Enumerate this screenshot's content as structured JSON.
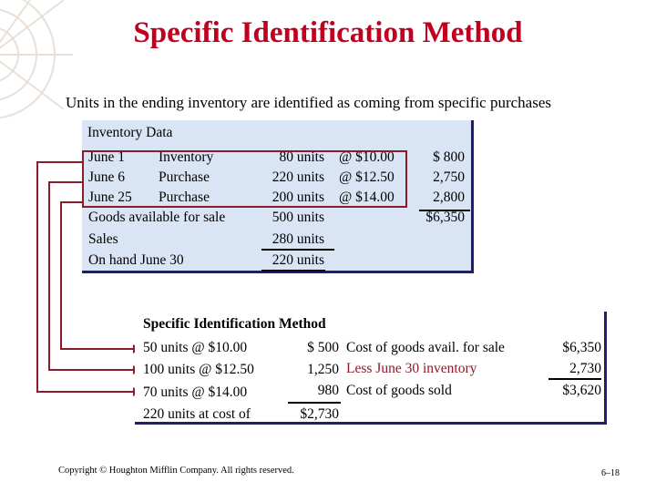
{
  "title": "Specific Identification Method",
  "subtitle": "Units in the ending inventory are identified as coming from specific purchases",
  "inventory": {
    "heading": "Inventory Data",
    "rows": [
      {
        "date": "June 1",
        "type": "Inventory",
        "units": "80 units",
        "price": "@ $10.00",
        "cost": "$  800"
      },
      {
        "date": "June 6",
        "type": "Purchase",
        "units": "220 units",
        "price": "@ $12.50",
        "cost": "2,750"
      },
      {
        "date": "June 25",
        "type": "Purchase",
        "units": "200 units",
        "price": "@ $14.00",
        "cost": "2,800"
      }
    ],
    "goods_available": {
      "label": "Goods available for sale",
      "units": "500 units",
      "cost": "$6,350"
    },
    "sales": {
      "label": "Sales",
      "units": "280 units"
    },
    "on_hand": {
      "label": "On hand June 30",
      "units": "220 units"
    }
  },
  "specific": {
    "heading": "Specific Identification Method",
    "lines": [
      {
        "desc": "50 units @ $10.00",
        "amount": "$  500"
      },
      {
        "desc": "100 units @ $12.50",
        "amount": "1,250"
      },
      {
        "desc": "70 units @ $14.00",
        "amount": "980"
      },
      {
        "desc": "220 units at cost of",
        "amount": "$2,730"
      }
    ],
    "summary": [
      {
        "label": "Cost of goods avail. for sale",
        "value": "$6,350"
      },
      {
        "label": "Less June 30 inventory",
        "value": "2,730"
      },
      {
        "label": "Cost of goods sold",
        "value": "$3,620"
      }
    ]
  },
  "footer": "Copyright © Houghton Mifflin Company.  All rights reserved.",
  "page_number": "6–18",
  "colors": {
    "title": "#c0001e",
    "box_bg": "#d9e4f4",
    "connector": "#8b1a2a",
    "less_label": "#8b1a2a"
  }
}
